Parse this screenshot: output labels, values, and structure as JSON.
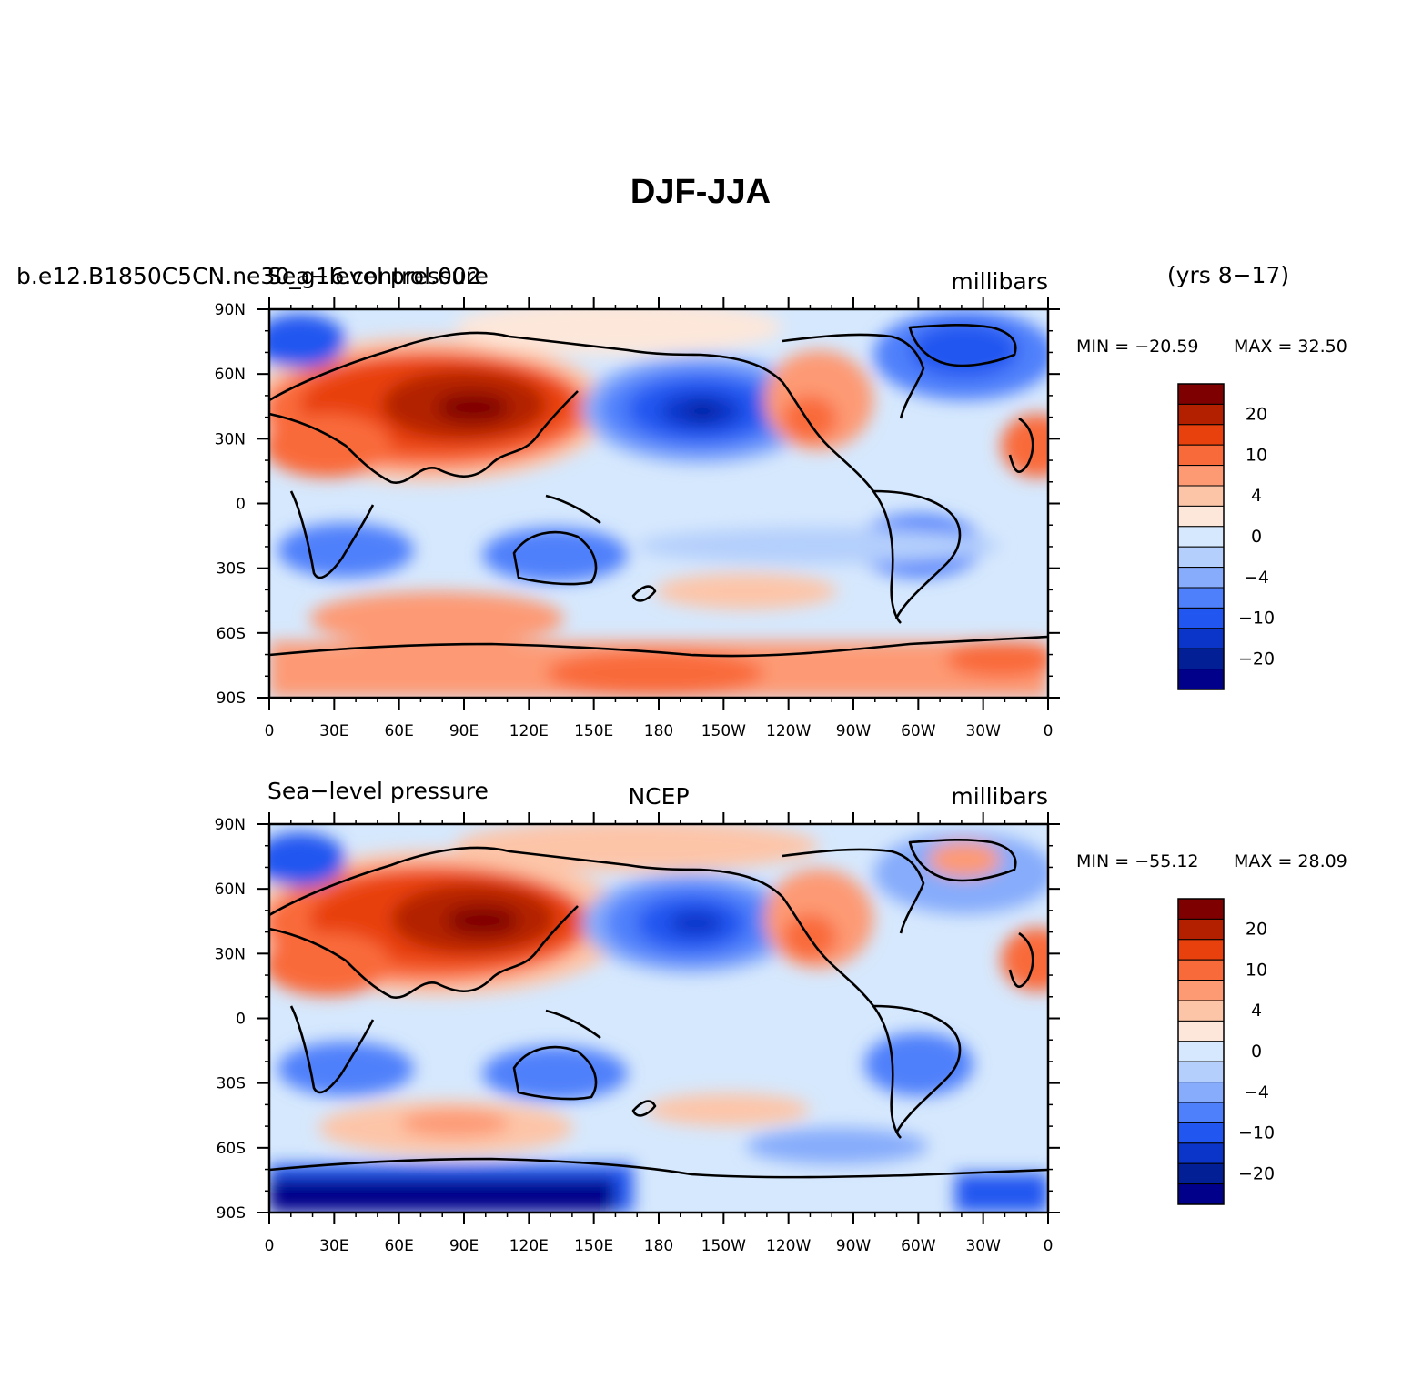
{
  "figure": {
    "title": "DJF-JJA",
    "years_label": "(yrs 8−17)"
  },
  "palette": [
    "#7f0000",
    "#b22000",
    "#e8410d",
    "#f96a3a",
    "#fd9a74",
    "#fdc5a8",
    "#fde7da",
    "#d6e8fd",
    "#b4cffc",
    "#86acfb",
    "#4f80fb",
    "#2256f0",
    "#0b35c9",
    "#031f96",
    "#00008a"
  ],
  "colorbar_labels": [
    "20",
    "10",
    "4",
    "0",
    "−4",
    "−10",
    "−20"
  ],
  "axes": {
    "lat_labels": [
      "90N",
      "60N",
      "30N",
      "0",
      "30S",
      "60S",
      "90S"
    ],
    "lon_labels": [
      "0",
      "30E",
      "60E",
      "90E",
      "120E",
      "150E",
      "180",
      "150W",
      "120W",
      "90W",
      "60W",
      "30W",
      "0"
    ]
  },
  "panels": [
    {
      "left_text": "b.e12.B1850C5CN.ne30_g16.control.002",
      "left_text_2": "Sea−level pressure",
      "center_text": "",
      "right_text": "millibars",
      "min_text": "MIN = −20.59",
      "max_text": "MAX =  32.50"
    },
    {
      "left_text": "Sea−level pressure",
      "center_text": "NCEP",
      "right_text": "millibars",
      "min_text": "MIN = −55.12",
      "max_text": "MAX =  28.09"
    }
  ]
}
